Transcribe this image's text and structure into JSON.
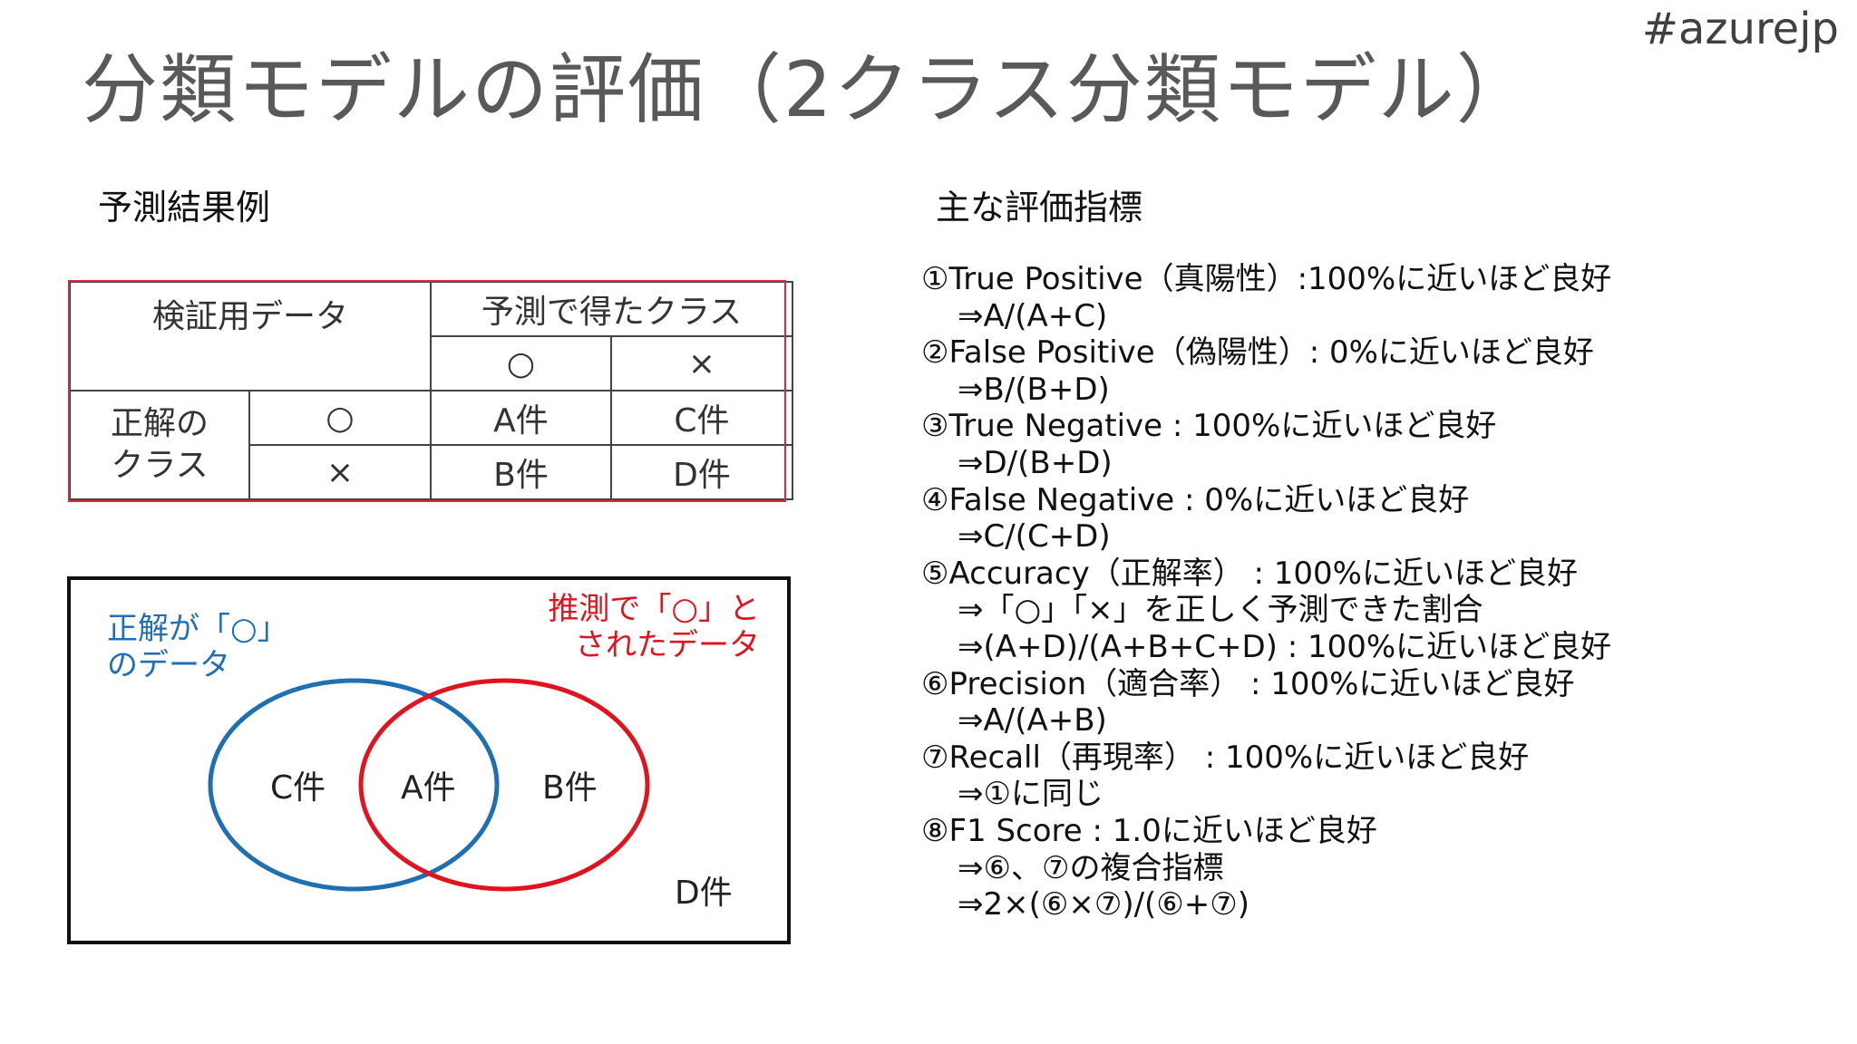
{
  "hashtag": "#azurejp",
  "title": "分類モデルの評価（2クラス分類モデル）",
  "left": {
    "heading": "予測結果例",
    "table": {
      "header_data": "検証用データ",
      "header_predicted": "予測で得たクラス",
      "pred_o": "○",
      "pred_x": "×",
      "row_label": "正解の\nクラス",
      "row_o": "○",
      "row_x": "×",
      "cell_a": "A件",
      "cell_c": "C件",
      "cell_b": "B件",
      "cell_d": "D件"
    },
    "venn": {
      "blue_label_1": "正解が「○」",
      "blue_label_2": "のデータ",
      "red_label_1": "推測で「○」と",
      "red_label_2": "されたデータ",
      "c": "C件",
      "a": "A件",
      "b": "B件",
      "d": "D件",
      "blue_color": "#1f6fb3",
      "red_color": "#e0141e"
    }
  },
  "right": {
    "heading": "主な評価指標",
    "lines": [
      {
        "text": "①True Positive（真陽性）:100%に近いほど良好",
        "sub": false
      },
      {
        "text": "⇒A/(A+C)",
        "sub": true
      },
      {
        "text": "②False Positive（偽陽性）: 0%に近いほど良好",
        "sub": false
      },
      {
        "text": "⇒B/(B+D)",
        "sub": true
      },
      {
        "text": "③True Negative : 100%に近いほど良好",
        "sub": false
      },
      {
        "text": "⇒D/(B+D)",
        "sub": true
      },
      {
        "text": "④False Negative : 0%に近いほど良好",
        "sub": false
      },
      {
        "text": "⇒C/(C+D)",
        "sub": true
      },
      {
        "text": "⑤Accuracy（正解率） : 100%に近いほど良好",
        "sub": false
      },
      {
        "text": "⇒「○」「×」を正しく予測できた割合",
        "sub": true
      },
      {
        "text": "⇒(A+D)/(A+B+C+D) : 100%に近いほど良好",
        "sub": true
      },
      {
        "text": "⑥Precision（適合率） : 100%に近いほど良好",
        "sub": false
      },
      {
        "text": "⇒A/(A+B)",
        "sub": true
      },
      {
        "text": "⑦Recall（再現率） : 100%に近いほど良好",
        "sub": false
      },
      {
        "text": "⇒①に同じ",
        "sub": true
      },
      {
        "text": "⑧F1 Score : 1.0に近いほど良好",
        "sub": false
      },
      {
        "text": "⇒⑥、⑦の複合指標",
        "sub": true
      },
      {
        "text": "⇒2×(⑥×⑦)/(⑥+⑦)",
        "sub": true
      }
    ]
  }
}
